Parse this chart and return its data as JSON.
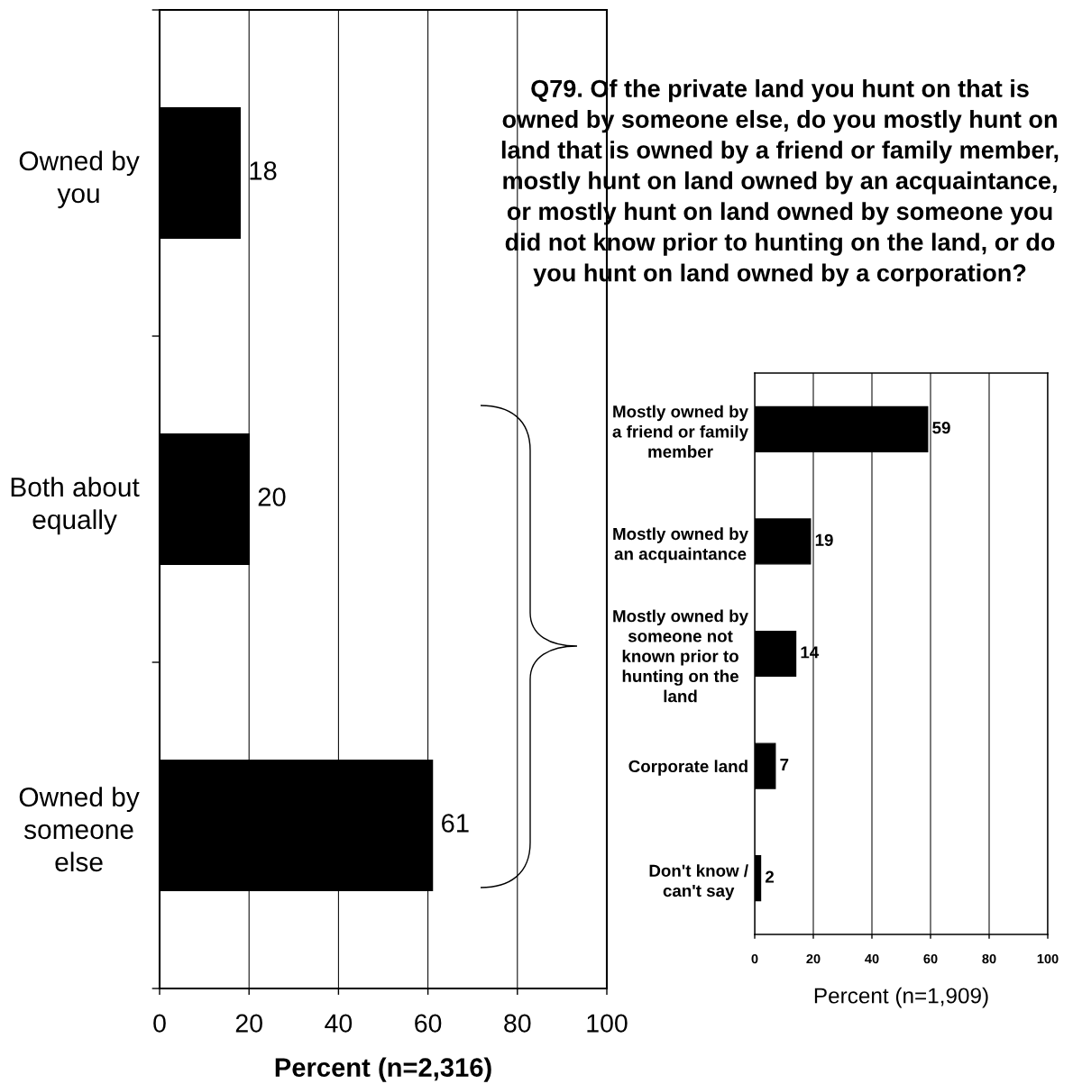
{
  "chart_data": [
    {
      "type": "bar",
      "orientation": "horizontal",
      "categories": [
        "Owned by\nyou",
        "Both about\nequally",
        "Owned by\nsomeone\nelse"
      ],
      "values": [
        18,
        20,
        61
      ],
      "color": "#000000",
      "xlim": [
        0,
        100
      ],
      "xticks": [
        0,
        20,
        40,
        60,
        80,
        100
      ],
      "xlabel": "Percent (n=2,316)",
      "grid": "x",
      "data_labels": true
    },
    {
      "type": "bar",
      "orientation": "horizontal",
      "title": "Q79. Of the private land you hunt on that is\nowned by someone else, do you mostly hunt on\nland that is owned by a friend or family member,\nmostly hunt on land owned by an acquaintance,\nor mostly hunt on land owned by someone you\ndid not know prior to hunting on the land, or do\nyou hunt on land owned by a corporation?",
      "categories": [
        "Mostly owned by\na friend or family\nmember",
        "Mostly owned by\nan acquaintance",
        "Mostly owned by\nsomeone not\nknown prior to\nhunting on the\nland",
        "Corporate land",
        "Don't know /\ncan't say"
      ],
      "values": [
        59,
        19,
        14,
        7,
        2
      ],
      "color": "#000000",
      "xlim": [
        0,
        100
      ],
      "xticks": [
        0,
        20,
        40,
        60,
        80,
        100
      ],
      "xlabel": "Percent (n=1,909)",
      "grid": "x",
      "data_labels": true
    }
  ]
}
